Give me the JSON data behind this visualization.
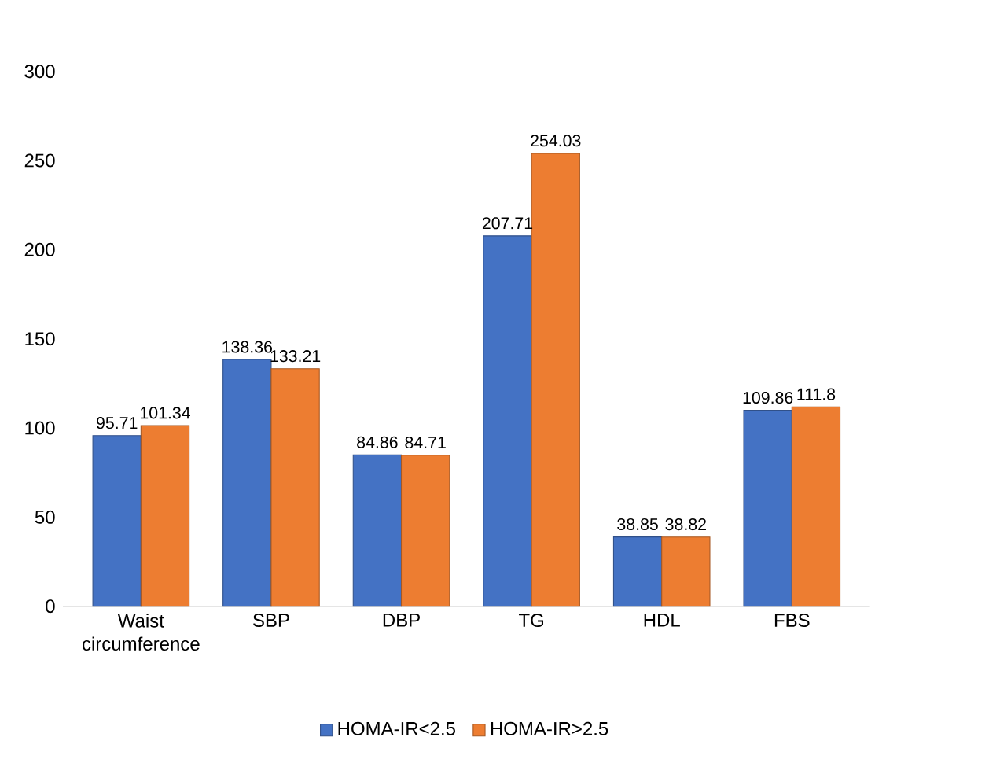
{
  "chart_data": {
    "type": "bar",
    "categories": [
      "Waist circumference",
      "SBP",
      "DBP",
      "TG",
      "HDL",
      "FBS"
    ],
    "series": [
      {
        "name": "HOMA-IR<2.5",
        "color": "#4472c4",
        "values": [
          95.71,
          138.36,
          84.86,
          207.71,
          38.85,
          109.86
        ]
      },
      {
        "name": "HOMA-IR>2.5",
        "color": "#ed7d31",
        "values": [
          101.34,
          133.21,
          84.71,
          254.03,
          38.82,
          111.8
        ]
      }
    ],
    "ylim": [
      0,
      300
    ],
    "yticks": [
      0,
      50,
      100,
      150,
      200,
      250,
      300
    ],
    "data_labels": true,
    "legend": "bottom",
    "grid": false
  }
}
